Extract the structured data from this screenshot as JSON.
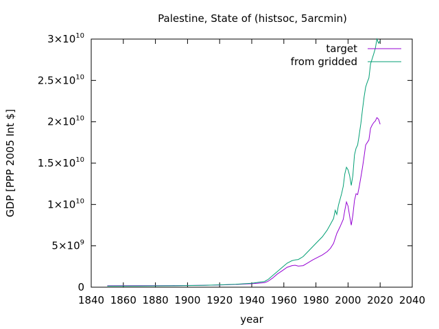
{
  "chart_data": {
    "type": "line",
    "title": "Palestine, State of (histsoc, 5arcmin)",
    "xlabel": "year",
    "ylabel": "GDP [PPP 2005 Int $]",
    "xlim": [
      1840,
      2040
    ],
    "ylim": [
      0,
      30000000000
    ],
    "x_ticks": [
      {
        "value": 1840,
        "label": "1840"
      },
      {
        "value": 1860,
        "label": "1860"
      },
      {
        "value": 1880,
        "label": "1880"
      },
      {
        "value": 1900,
        "label": "1900"
      },
      {
        "value": 1920,
        "label": "1920"
      },
      {
        "value": 1940,
        "label": "1940"
      },
      {
        "value": 1960,
        "label": "1960"
      },
      {
        "value": 1980,
        "label": "1980"
      },
      {
        "value": 2000,
        "label": "2000"
      },
      {
        "value": 2020,
        "label": "2020"
      },
      {
        "value": 2040,
        "label": "2040"
      }
    ],
    "y_ticks": [
      {
        "value": 0,
        "mantissa": "0",
        "exponent": ""
      },
      {
        "value": 5000000000,
        "mantissa": "5×10",
        "exponent": "9"
      },
      {
        "value": 10000000000,
        "mantissa": "1×10",
        "exponent": "10"
      },
      {
        "value": 15000000000,
        "mantissa": "1.5×10",
        "exponent": "10"
      },
      {
        "value": 20000000000,
        "mantissa": "2×10",
        "exponent": "10"
      },
      {
        "value": 25000000000,
        "mantissa": "2.5×10",
        "exponent": "10"
      },
      {
        "value": 30000000000,
        "mantissa": "3×10",
        "exponent": "10"
      }
    ],
    "grid": false,
    "legend_position": "top-right",
    "series": [
      {
        "name": "target",
        "color": "#9400d3",
        "points": [
          [
            1850,
            170000000
          ],
          [
            1870,
            185000000
          ],
          [
            1890,
            200000000
          ],
          [
            1910,
            230000000
          ],
          [
            1920,
            270000000
          ],
          [
            1930,
            330000000
          ],
          [
            1940,
            420000000
          ],
          [
            1948,
            550000000
          ],
          [
            1950,
            700000000
          ],
          [
            1953,
            1100000000
          ],
          [
            1956,
            1600000000
          ],
          [
            1959,
            2000000000
          ],
          [
            1962,
            2400000000
          ],
          [
            1965,
            2600000000
          ],
          [
            1967,
            2650000000
          ],
          [
            1969,
            2550000000
          ],
          [
            1972,
            2600000000
          ],
          [
            1975,
            2950000000
          ],
          [
            1978,
            3300000000
          ],
          [
            1981,
            3600000000
          ],
          [
            1984,
            3900000000
          ],
          [
            1987,
            4300000000
          ],
          [
            1989,
            4700000000
          ],
          [
            1991,
            5300000000
          ],
          [
            1993,
            6500000000
          ],
          [
            1995,
            7300000000
          ],
          [
            1997,
            8200000000
          ],
          [
            1998,
            9300000000
          ],
          [
            1999,
            10300000000
          ],
          [
            2000,
            9800000000
          ],
          [
            2001,
            8600000000
          ],
          [
            2002,
            7500000000
          ],
          [
            2003,
            8700000000
          ],
          [
            2004,
            10500000000
          ],
          [
            2005,
            11300000000
          ],
          [
            2006,
            11200000000
          ],
          [
            2007,
            12200000000
          ],
          [
            2008,
            13300000000
          ],
          [
            2009,
            14500000000
          ],
          [
            2010,
            15800000000
          ],
          [
            2011,
            17200000000
          ],
          [
            2012,
            17500000000
          ],
          [
            2013,
            17800000000
          ],
          [
            2014,
            19200000000
          ],
          [
            2015,
            19600000000
          ],
          [
            2016,
            19900000000
          ],
          [
            2017,
            20100000000
          ],
          [
            2018,
            20500000000
          ],
          [
            2019,
            20300000000
          ],
          [
            2020,
            19700000000
          ]
        ]
      },
      {
        "name": "from gridded",
        "color": "#009e73",
        "points": [
          [
            1850,
            130000000
          ],
          [
            1870,
            145000000
          ],
          [
            1890,
            170000000
          ],
          [
            1910,
            220000000
          ],
          [
            1920,
            280000000
          ],
          [
            1930,
            360000000
          ],
          [
            1940,
            480000000
          ],
          [
            1948,
            700000000
          ],
          [
            1950,
            900000000
          ],
          [
            1953,
            1400000000
          ],
          [
            1956,
            1900000000
          ],
          [
            1959,
            2400000000
          ],
          [
            1962,
            2900000000
          ],
          [
            1965,
            3200000000
          ],
          [
            1967,
            3300000000
          ],
          [
            1969,
            3350000000
          ],
          [
            1972,
            3700000000
          ],
          [
            1975,
            4300000000
          ],
          [
            1978,
            4900000000
          ],
          [
            1981,
            5500000000
          ],
          [
            1984,
            6100000000
          ],
          [
            1987,
            6900000000
          ],
          [
            1989,
            7600000000
          ],
          [
            1991,
            8300000000
          ],
          [
            1992,
            9300000000
          ],
          [
            1993,
            8800000000
          ],
          [
            1994,
            9900000000
          ],
          [
            1996,
            11300000000
          ],
          [
            1997,
            12200000000
          ],
          [
            1998,
            13700000000
          ],
          [
            1999,
            14500000000
          ],
          [
            2000,
            14200000000
          ],
          [
            2001,
            13500000000
          ],
          [
            2002,
            12300000000
          ],
          [
            2003,
            13500000000
          ],
          [
            2004,
            16000000000
          ],
          [
            2005,
            16800000000
          ],
          [
            2006,
            17200000000
          ],
          [
            2007,
            18500000000
          ],
          [
            2008,
            19800000000
          ],
          [
            2009,
            21500000000
          ],
          [
            2010,
            23000000000
          ],
          [
            2011,
            24200000000
          ],
          [
            2012,
            24800000000
          ],
          [
            2013,
            25300000000
          ],
          [
            2014,
            27000000000
          ],
          [
            2015,
            27600000000
          ],
          [
            2016,
            28200000000
          ],
          [
            2017,
            28900000000
          ],
          [
            2018,
            30000000000
          ],
          [
            2019,
            29500000000
          ],
          [
            2020,
            29800000000
          ]
        ]
      }
    ]
  }
}
